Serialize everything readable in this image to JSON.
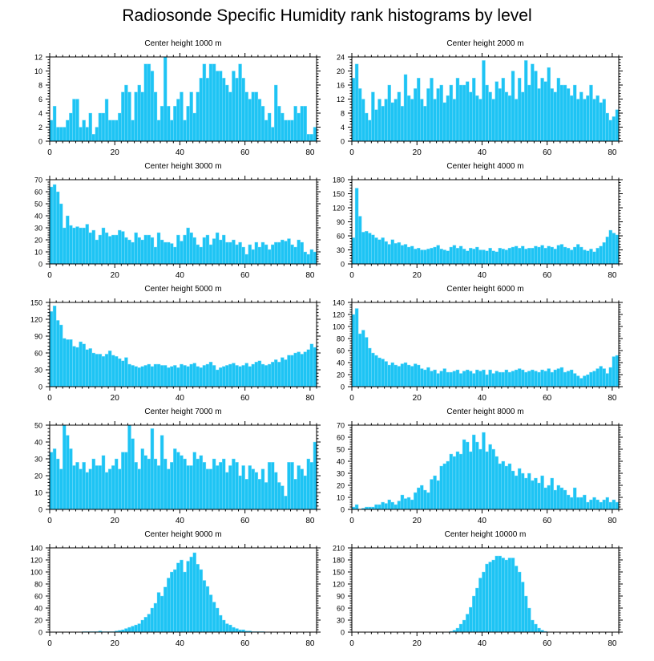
{
  "title": "Radiosonde Specific Humidity rank histograms by level",
  "colors": {
    "bar": "#1ec4f4",
    "bar_edge": "#8fe1fb",
    "axis": "#000000"
  },
  "chart_data": [
    {
      "type": "bar",
      "title": "Center height 1000 m",
      "xlim": [
        0,
        82
      ],
      "ylim": [
        0,
        12
      ],
      "xticks": [
        0,
        20,
        40,
        60,
        80
      ],
      "yticks": [
        0,
        2,
        4,
        6,
        8,
        10,
        12
      ],
      "values": [
        3,
        5,
        2,
        2,
        2,
        3,
        4,
        6,
        6,
        2,
        3,
        2,
        4,
        1,
        2,
        4,
        4,
        6,
        3,
        3,
        3,
        4,
        7,
        8,
        7,
        3,
        7,
        8,
        7,
        11,
        11,
        10,
        7,
        3,
        5,
        12,
        5,
        3,
        5,
        6,
        7,
        3,
        5,
        7,
        4,
        7,
        9,
        11,
        9,
        11,
        11,
        10,
        10,
        9,
        8,
        7,
        10,
        9,
        11,
        9,
        7,
        6,
        7,
        7,
        6,
        5,
        3,
        4,
        2,
        8,
        5,
        4,
        3,
        3,
        3,
        5,
        4,
        5,
        5,
        1,
        1,
        2
      ]
    },
    {
      "type": "bar",
      "title": "Center height 2000 m",
      "xlim": [
        0,
        82
      ],
      "ylim": [
        0,
        24
      ],
      "xticks": [
        0,
        20,
        40,
        60,
        80
      ],
      "yticks": [
        0,
        4,
        8,
        12,
        16,
        20,
        24
      ],
      "values": [
        18,
        22,
        15,
        12,
        8,
        6,
        14,
        9,
        12,
        10,
        12,
        16,
        11,
        12,
        14,
        10,
        19,
        13,
        12,
        15,
        18,
        12,
        10,
        15,
        18,
        12,
        15,
        16,
        11,
        13,
        16,
        12,
        18,
        16,
        16,
        17,
        14,
        18,
        13,
        12,
        23,
        16,
        14,
        12,
        17,
        15,
        18,
        14,
        13,
        20,
        12,
        18,
        14,
        23,
        16,
        22,
        20,
        15,
        18,
        17,
        21,
        15,
        14,
        18,
        16,
        16,
        15,
        13,
        16,
        12,
        14,
        12,
        13,
        16,
        12,
        13,
        11,
        12,
        8,
        6,
        7,
        9
      ]
    },
    {
      "type": "bar",
      "title": "Center height 3000 m",
      "xlim": [
        0,
        82
      ],
      "ylim": [
        0,
        70
      ],
      "xticks": [
        0,
        20,
        40,
        60,
        80
      ],
      "yticks": [
        0,
        10,
        20,
        30,
        40,
        50,
        60,
        70
      ],
      "values": [
        64,
        66,
        60,
        50,
        30,
        40,
        32,
        30,
        31,
        30,
        30,
        33,
        26,
        28,
        20,
        24,
        30,
        26,
        23,
        24,
        24,
        28,
        27,
        22,
        20,
        18,
        26,
        22,
        20,
        24,
        24,
        22,
        14,
        26,
        20,
        18,
        18,
        17,
        14,
        24,
        19,
        24,
        30,
        26,
        22,
        16,
        14,
        22,
        24,
        16,
        21,
        26,
        20,
        24,
        18,
        18,
        20,
        16,
        18,
        14,
        8,
        16,
        12,
        18,
        14,
        18,
        16,
        12,
        16,
        18,
        18,
        20,
        19,
        21,
        16,
        14,
        20,
        18,
        10,
        8,
        12,
        10
      ]
    },
    {
      "type": "bar",
      "title": "Center height 4000 m",
      "xlim": [
        0,
        82
      ],
      "ylim": [
        0,
        180
      ],
      "xticks": [
        0,
        20,
        40,
        60,
        80
      ],
      "yticks": [
        0,
        30,
        60,
        90,
        120,
        150,
        180
      ],
      "values": [
        56,
        162,
        102,
        68,
        70,
        66,
        62,
        56,
        52,
        56,
        48,
        42,
        52,
        44,
        46,
        40,
        42,
        36,
        38,
        32,
        34,
        30,
        30,
        32,
        34,
        36,
        40,
        32,
        30,
        28,
        36,
        40,
        34,
        38,
        32,
        28,
        34,
        32,
        36,
        30,
        30,
        28,
        34,
        28,
        26,
        34,
        32,
        30,
        34,
        36,
        38,
        34,
        38,
        32,
        34,
        34,
        38,
        36,
        40,
        34,
        38,
        36,
        32,
        40,
        42,
        36,
        34,
        30,
        36,
        42,
        36,
        30,
        28,
        32,
        26,
        34,
        38,
        46,
        58,
        72,
        66,
        62
      ]
    },
    {
      "type": "bar",
      "title": "Center height 5000 m",
      "xlim": [
        0,
        82
      ],
      "ylim": [
        0,
        150
      ],
      "xticks": [
        0,
        20,
        40,
        60,
        80
      ],
      "yticks": [
        0,
        30,
        60,
        90,
        120,
        150
      ],
      "values": [
        134,
        144,
        118,
        110,
        86,
        84,
        84,
        72,
        70,
        80,
        76,
        66,
        68,
        60,
        58,
        58,
        54,
        58,
        64,
        56,
        54,
        50,
        46,
        52,
        40,
        38,
        36,
        34,
        36,
        38,
        40,
        36,
        40,
        40,
        38,
        38,
        34,
        36,
        38,
        34,
        40,
        38,
        36,
        40,
        42,
        36,
        34,
        38,
        40,
        44,
        38,
        30,
        34,
        36,
        38,
        40,
        42,
        38,
        36,
        38,
        42,
        36,
        40,
        44,
        46,
        40,
        38,
        40,
        44,
        48,
        44,
        52,
        48,
        56,
        56,
        60,
        62,
        58,
        62,
        66,
        76,
        70
      ]
    },
    {
      "type": "bar",
      "title": "Center height 6000 m",
      "xlim": [
        0,
        82
      ],
      "ylim": [
        0,
        140
      ],
      "xticks": [
        0,
        20,
        40,
        60,
        80
      ],
      "yticks": [
        0,
        20,
        40,
        60,
        80,
        100,
        120,
        140
      ],
      "values": [
        120,
        130,
        88,
        94,
        82,
        64,
        56,
        52,
        48,
        46,
        42,
        36,
        40,
        36,
        34,
        38,
        40,
        36,
        34,
        38,
        36,
        30,
        28,
        32,
        26,
        28,
        22,
        26,
        30,
        24,
        24,
        26,
        28,
        22,
        26,
        28,
        26,
        22,
        28,
        26,
        28,
        20,
        28,
        22,
        26,
        24,
        24,
        28,
        24,
        26,
        28,
        30,
        28,
        24,
        26,
        28,
        26,
        24,
        28,
        26,
        30,
        24,
        28,
        30,
        32,
        24,
        26,
        28,
        22,
        18,
        14,
        18,
        20,
        24,
        26,
        30,
        34,
        30,
        22,
        32,
        50,
        52
      ]
    },
    {
      "type": "bar",
      "title": "Center height 7000 m",
      "xlim": [
        0,
        82
      ],
      "ylim": [
        0,
        50
      ],
      "xticks": [
        0,
        20,
        40,
        60,
        80
      ],
      "yticks": [
        0,
        10,
        20,
        30,
        40,
        50
      ],
      "values": [
        34,
        36,
        30,
        24,
        50,
        44,
        36,
        26,
        28,
        24,
        28,
        22,
        24,
        30,
        26,
        26,
        32,
        22,
        24,
        26,
        30,
        24,
        34,
        34,
        50,
        42,
        28,
        24,
        36,
        32,
        30,
        48,
        30,
        26,
        44,
        30,
        24,
        28,
        36,
        34,
        32,
        30,
        26,
        26,
        34,
        30,
        32,
        28,
        24,
        24,
        30,
        26,
        28,
        30,
        22,
        26,
        30,
        28,
        20,
        26,
        18,
        26,
        24,
        22,
        18,
        24,
        16,
        28,
        28,
        22,
        16,
        14,
        8,
        28,
        28,
        18,
        26,
        24,
        20,
        30,
        28,
        40
      ]
    },
    {
      "type": "bar",
      "title": "Center height 8000 m",
      "xlim": [
        0,
        82
      ],
      "ylim": [
        0,
        70
      ],
      "xticks": [
        0,
        20,
        40,
        60,
        80
      ],
      "yticks": [
        0,
        10,
        20,
        30,
        40,
        50,
        60,
        70
      ],
      "values": [
        2,
        4,
        0,
        1,
        2,
        2,
        2,
        4,
        4,
        6,
        5,
        8,
        6,
        4,
        7,
        12,
        9,
        10,
        8,
        14,
        18,
        20,
        16,
        14,
        25,
        28,
        24,
        36,
        38,
        40,
        46,
        44,
        48,
        46,
        58,
        56,
        48,
        62,
        56,
        50,
        64,
        48,
        54,
        50,
        44,
        38,
        40,
        36,
        38,
        32,
        28,
        34,
        30,
        26,
        30,
        24,
        26,
        22,
        28,
        18,
        20,
        26,
        16,
        20,
        18,
        16,
        12,
        10,
        18,
        10,
        10,
        12,
        6,
        8,
        10,
        8,
        6,
        8,
        10,
        6,
        8,
        6
      ]
    },
    {
      "type": "bar",
      "title": "Center height 9000 m",
      "xlim": [
        0,
        82
      ],
      "ylim": [
        0,
        140
      ],
      "xticks": [
        0,
        20,
        40,
        60,
        80
      ],
      "yticks": [
        0,
        20,
        40,
        60,
        80,
        100,
        120,
        140
      ],
      "values": [
        0,
        0,
        0,
        0,
        0,
        0,
        0,
        0,
        0,
        0,
        1,
        1,
        1,
        1,
        1,
        2,
        1,
        1,
        1,
        1,
        2,
        3,
        4,
        6,
        8,
        10,
        12,
        14,
        20,
        25,
        30,
        40,
        48,
        66,
        60,
        75,
        90,
        100,
        104,
        115,
        120,
        100,
        118,
        125,
        132,
        113,
        104,
        86,
        76,
        62,
        50,
        40,
        28,
        20,
        14,
        12,
        8,
        6,
        4,
        4,
        2,
        2,
        1,
        1,
        1,
        1,
        0,
        0,
        0,
        0,
        0,
        0,
        0,
        0,
        0,
        0,
        0,
        0,
        0,
        0,
        0,
        0
      ]
    },
    {
      "type": "bar",
      "title": "Center height 10000 m",
      "xlim": [
        0,
        82
      ],
      "ylim": [
        0,
        210
      ],
      "xticks": [
        0,
        20,
        40,
        60,
        80
      ],
      "yticks": [
        0,
        30,
        60,
        90,
        120,
        150,
        180,
        210
      ],
      "values": [
        0,
        0,
        0,
        0,
        0,
        0,
        0,
        0,
        0,
        0,
        0,
        0,
        0,
        0,
        0,
        0,
        0,
        0,
        0,
        0,
        0,
        0,
        0,
        0,
        0,
        0,
        0,
        0,
        0,
        0,
        2,
        5,
        10,
        20,
        30,
        45,
        62,
        90,
        110,
        135,
        150,
        170,
        175,
        180,
        190,
        190,
        185,
        180,
        185,
        185,
        165,
        150,
        125,
        90,
        60,
        30,
        20,
        10,
        5,
        2,
        0,
        0,
        0,
        0,
        0,
        0,
        0,
        0,
        0,
        0,
        0,
        0,
        0,
        0,
        0,
        0,
        0,
        0,
        0,
        0,
        0,
        0
      ]
    }
  ]
}
